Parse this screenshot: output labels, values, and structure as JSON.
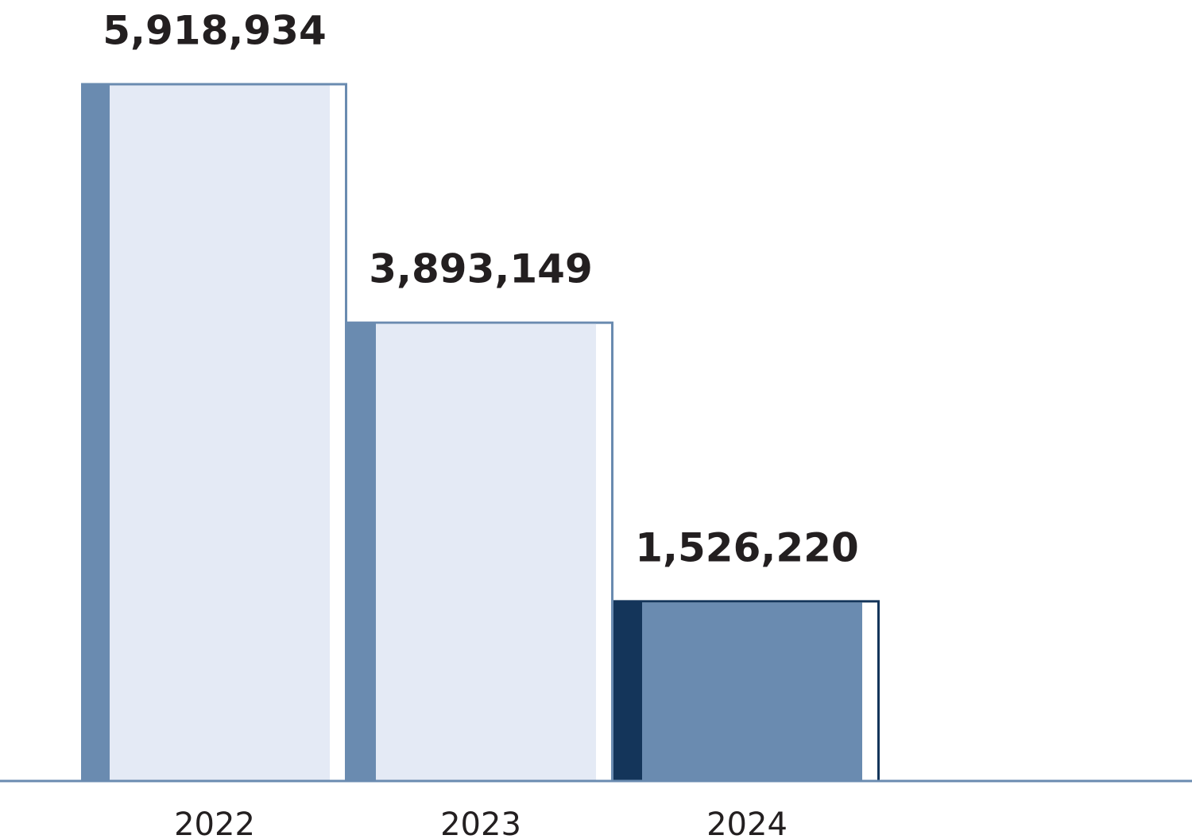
{
  "chart_data": {
    "type": "bar",
    "categories": [
      "2022",
      "2023",
      "2024"
    ],
    "values": [
      5918934,
      3893149,
      1526220
    ],
    "value_labels": [
      "5,918,934",
      "3,893,149",
      "1,526,220"
    ],
    "colors": [
      "#e4eaf5",
      "#e4eaf5",
      "#6a8bb0"
    ],
    "edge_colors": [
      "#6a8bb0",
      "#6a8bb0",
      "#14355a"
    ]
  }
}
